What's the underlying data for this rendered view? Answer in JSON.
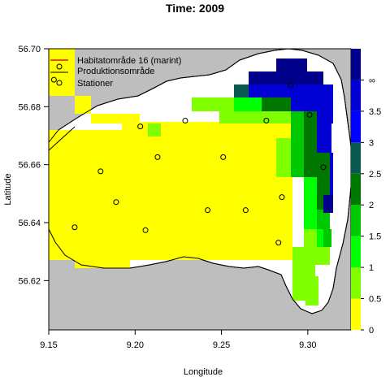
{
  "chart_data": {
    "type": "heatmap",
    "title": "Time: 2009",
    "xlabel": "Longitude",
    "ylabel": "Latitude",
    "xlim": [
      9.15,
      9.325
    ],
    "ylim": [
      56.603,
      56.7
    ],
    "x_ticks": [
      "9.15",
      "9.20",
      "9.25",
      "9.30"
    ],
    "x_tick_values": [
      9.15,
      9.2,
      9.25,
      9.3
    ],
    "y_ticks": [
      "56.62",
      "56.64",
      "56.66",
      "56.68",
      "56.70"
    ],
    "y_tick_values": [
      56.62,
      56.64,
      56.66,
      56.68,
      56.7
    ],
    "legend": {
      "placement": "top-left",
      "items": [
        {
          "label": "Habitatområde 16 (marint)",
          "symbol": "line",
          "color": "#ff0000"
        },
        {
          "label": "Produktionsområde",
          "symbol": "line",
          "color": "#000000"
        },
        {
          "label": "Stationer",
          "symbol": "circle",
          "color": "#000000"
        }
      ]
    },
    "colorbar": {
      "breaks": [
        0,
        0.5,
        1,
        1.5,
        2,
        2.5,
        3,
        3.5
      ],
      "tick_labels": [
        "0",
        "0.5",
        "1",
        "1.5",
        "2",
        "2.5",
        "3",
        "3.5",
        "∞"
      ],
      "colors": [
        "#ffff00",
        "#80ff00",
        "#00ff00",
        "#00c800",
        "#007800",
        "#0a5a50",
        "#0000ff",
        "#0000d2",
        "#00008b"
      ]
    },
    "stations": [
      {
        "x": 9.153,
        "y": 56.6893
      },
      {
        "x": 9.203,
        "y": 56.6732
      },
      {
        "x": 9.229,
        "y": 56.6752
      },
      {
        "x": 9.276,
        "y": 56.6752
      },
      {
        "x": 9.29,
        "y": 56.6874
      },
      {
        "x": 9.301,
        "y": 56.6772
      },
      {
        "x": 9.18,
        "y": 56.6577
      },
      {
        "x": 9.213,
        "y": 56.6626
      },
      {
        "x": 9.251,
        "y": 56.6626
      },
      {
        "x": 9.309,
        "y": 56.6591
      },
      {
        "x": 9.189,
        "y": 56.6471
      },
      {
        "x": 9.242,
        "y": 56.6443
      },
      {
        "x": 9.264,
        "y": 56.6443
      },
      {
        "x": 9.285,
        "y": 56.6488
      },
      {
        "x": 9.165,
        "y": 56.6384
      },
      {
        "x": 9.206,
        "y": 56.6374
      },
      {
        "x": 9.283,
        "y": 56.6331
      }
    ],
    "grid": false
  }
}
